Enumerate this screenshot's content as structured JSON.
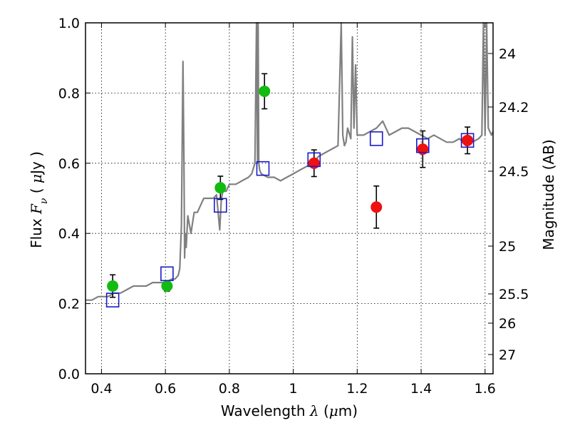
{
  "chart_data": {
    "type": "scatter",
    "title": "",
    "xlabel": "Wavelength  λ (μm)",
    "ylabel": "Flux  F_ν  ( μJy )",
    "y2label": "Magnitude (AB)",
    "xlim": [
      0.35,
      1.625
    ],
    "ylim": [
      0,
      1.0
    ],
    "grid": true,
    "x_ticks": [
      0.4,
      0.6,
      0.8,
      1.0,
      1.2,
      1.4,
      1.6
    ],
    "x_tick_labels": [
      "0.4",
      "0.6",
      "0.8",
      "1",
      "1.2",
      "1.4",
      "1.6"
    ],
    "y_ticks": [
      0.0,
      0.2,
      0.4,
      0.6,
      0.8,
      1.0
    ],
    "y_tick_labels": [
      "0.0",
      "0.2",
      "0.4",
      "0.6",
      "0.8",
      "1.0"
    ],
    "y2_ticks": [
      "24",
      "24.2",
      "24.5",
      "25",
      "25.5",
      "26",
      "27"
    ],
    "colors": {
      "spectrum": "#808080",
      "green_points": "#11bb11",
      "red_points": "#ee1111",
      "model_squares": "#1a1acc",
      "errorbar": "#000000"
    },
    "series": [
      {
        "kind": "spectrum",
        "x": [
          0.35,
          0.37,
          0.39,
          0.4,
          0.42,
          0.44,
          0.46,
          0.48,
          0.5,
          0.52,
          0.54,
          0.56,
          0.58,
          0.6,
          0.62,
          0.63,
          0.64,
          0.645,
          0.65,
          0.655,
          0.658,
          0.66,
          0.662,
          0.665,
          0.67,
          0.68,
          0.69,
          0.7,
          0.71,
          0.72,
          0.73,
          0.74,
          0.75,
          0.76,
          0.77,
          0.775,
          0.78,
          0.79,
          0.8,
          0.82,
          0.84,
          0.86,
          0.87,
          0.88,
          0.885,
          0.888,
          0.89,
          0.892,
          0.895,
          0.9,
          0.92,
          0.94,
          0.96,
          0.98,
          1.0,
          1.02,
          1.04,
          1.06,
          1.08,
          1.1,
          1.12,
          1.14,
          1.15,
          1.155,
          1.16,
          1.165,
          1.17,
          1.18,
          1.185,
          1.19,
          1.195,
          1.2,
          1.22,
          1.24,
          1.26,
          1.28,
          1.3,
          1.32,
          1.34,
          1.36,
          1.38,
          1.4,
          1.42,
          1.44,
          1.46,
          1.48,
          1.5,
          1.52,
          1.54,
          1.56,
          1.58,
          1.59,
          1.595,
          1.6,
          1.605,
          1.61,
          1.62,
          1.625
        ],
        "y": [
          0.21,
          0.21,
          0.22,
          0.22,
          0.22,
          0.23,
          0.23,
          0.24,
          0.25,
          0.25,
          0.25,
          0.26,
          0.26,
          0.26,
          0.27,
          0.27,
          0.28,
          0.3,
          0.42,
          0.89,
          0.6,
          0.33,
          0.4,
          0.36,
          0.45,
          0.4,
          0.46,
          0.46,
          0.48,
          0.5,
          0.5,
          0.5,
          0.5,
          0.51,
          0.41,
          0.5,
          0.52,
          0.52,
          0.54,
          0.54,
          0.55,
          0.56,
          0.57,
          0.6,
          1.0,
          0.6,
          1.0,
          0.6,
          0.58,
          0.57,
          0.56,
          0.56,
          0.55,
          0.56,
          0.57,
          0.58,
          0.59,
          0.6,
          0.62,
          0.63,
          0.64,
          0.65,
          1.0,
          0.68,
          0.65,
          0.66,
          0.7,
          0.67,
          0.96,
          0.7,
          0.88,
          0.68,
          0.68,
          0.69,
          0.7,
          0.72,
          0.68,
          0.69,
          0.7,
          0.7,
          0.69,
          0.68,
          0.67,
          0.68,
          0.67,
          0.66,
          0.66,
          0.67,
          0.65,
          0.66,
          0.67,
          0.68,
          1.0,
          0.68,
          1.0,
          0.7,
          0.68,
          0.69
        ]
      },
      {
        "kind": "points",
        "color_key": "green_points",
        "x": [
          0.435,
          0.605,
          0.772,
          0.91
        ],
        "y": [
          0.25,
          0.25,
          0.53,
          0.805
        ],
        "yerr": [
          0.032,
          0.015,
          0.033,
          0.05
        ]
      },
      {
        "kind": "points",
        "color_key": "red_points",
        "x": [
          1.065,
          1.26,
          1.405,
          1.545
        ],
        "y": [
          0.6,
          0.475,
          0.64,
          0.665
        ],
        "yerr": [
          0.038,
          0.06,
          0.052,
          0.038
        ]
      },
      {
        "kind": "squares",
        "color_key": "model_squares",
        "x": [
          0.435,
          0.605,
          0.772,
          0.905,
          1.065,
          1.26,
          1.405,
          1.545
        ],
        "y": [
          0.21,
          0.285,
          0.48,
          0.585,
          0.61,
          0.67,
          0.65,
          0.665
        ]
      }
    ]
  }
}
